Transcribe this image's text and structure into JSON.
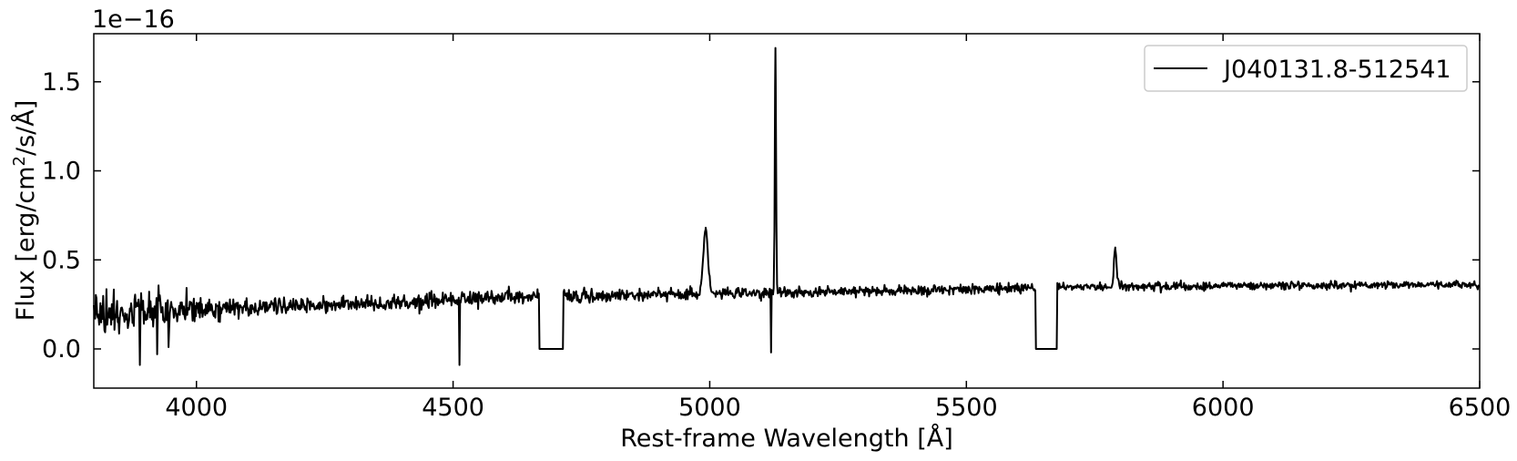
{
  "chart_data": {
    "type": "line",
    "title": "",
    "xlabel": "Rest-frame Wavelength [Å]",
    "ylabel_parts": [
      "Flux [erg/cm",
      "2",
      "/s/Å]"
    ],
    "y_offset_label": "1e−16",
    "y_scale": 1e-16,
    "xlim": [
      3800,
      6500
    ],
    "ylim": [
      -0.22,
      1.77
    ],
    "grid": false,
    "legend_placement": "top-right",
    "x_ticks": [
      4000,
      4500,
      5000,
      5500,
      6000,
      6500
    ],
    "x_tick_labels": [
      "4000",
      "4500",
      "5000",
      "5500",
      "6000",
      "6500"
    ],
    "y_ticks": [
      0.0,
      0.5,
      1.0,
      1.5
    ],
    "y_tick_labels": [
      "0.0",
      "0.5",
      "1.0",
      "1.5"
    ],
    "series": [
      {
        "name": "J040131.8-512541",
        "color": "#000000",
        "continuum_points": [
          [
            3800,
            0.19
          ],
          [
            4000,
            0.22
          ],
          [
            4200,
            0.24
          ],
          [
            4400,
            0.26
          ],
          [
            4600,
            0.29
          ],
          [
            4800,
            0.3
          ],
          [
            5000,
            0.31
          ],
          [
            5200,
            0.32
          ],
          [
            5400,
            0.33
          ],
          [
            5600,
            0.34
          ],
          [
            5800,
            0.35
          ],
          [
            6000,
            0.355
          ],
          [
            6200,
            0.355
          ],
          [
            6500,
            0.36
          ]
        ],
        "noise_points": [
          [
            3800,
            0.13
          ],
          [
            3950,
            0.1
          ],
          [
            4100,
            0.06
          ],
          [
            4300,
            0.05
          ],
          [
            4500,
            0.055
          ],
          [
            4700,
            0.045
          ],
          [
            4900,
            0.04
          ],
          [
            5100,
            0.035
          ],
          [
            5500,
            0.03
          ],
          [
            6000,
            0.025
          ],
          [
            6500,
            0.025
          ]
        ],
        "emission_lines": [
          {
            "x": 4992,
            "peak": 0.67,
            "sigma": 4.5
          },
          {
            "x": 5128,
            "peak": 1.69,
            "sigma": 1.2
          },
          {
            "x": 5790,
            "peak": 0.57,
            "sigma": 2.5
          }
        ],
        "absorption_spikes": [
          {
            "x": 4513,
            "min": -0.09
          },
          {
            "x": 3890,
            "min": -0.09
          },
          {
            "x": 3923,
            "min": -0.03
          },
          {
            "x": 3946,
            "min": 0.01
          },
          {
            "x": 5120,
            "min": -0.02
          }
        ],
        "gaps": [
          {
            "x_start": 4668,
            "x_end": 4715,
            "value": 0.0
          },
          {
            "x_start": 5635,
            "x_end": 5677,
            "value": 0.0
          }
        ]
      }
    ]
  }
}
